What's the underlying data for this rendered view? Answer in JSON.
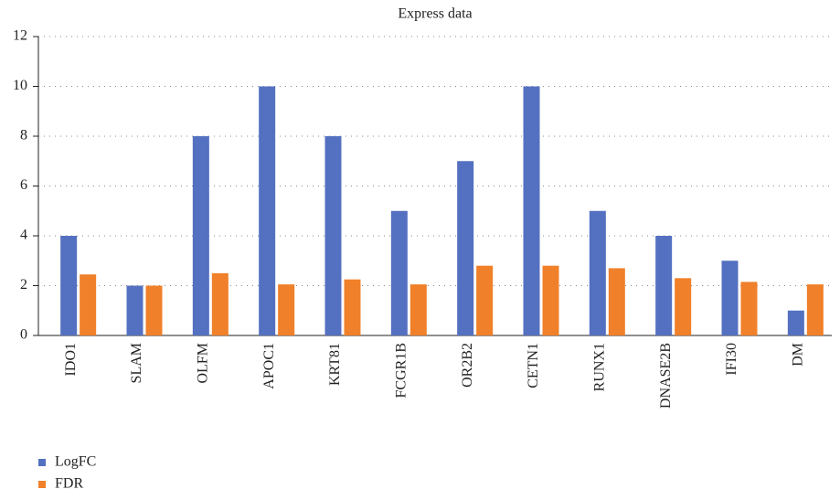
{
  "chart_data": {
    "type": "bar",
    "title": "Express data",
    "categories": [
      "IDO1",
      "SLAM",
      "OLFM",
      "APOC1",
      "KRT81",
      "FCGR1B",
      "OR2B2",
      "CETN1",
      "RUNX1",
      "DNASE2B",
      "IFI30",
      "DM"
    ],
    "series": [
      {
        "name": "LogFC",
        "color": "#5470c0",
        "values": [
          4,
          2,
          8,
          10,
          8,
          5,
          7,
          10,
          5,
          4,
          3,
          1
        ]
      },
      {
        "name": "FDR",
        "color": "#f0802a",
        "values": [
          2.45,
          2.0,
          2.5,
          2.05,
          2.25,
          2.05,
          2.8,
          2.8,
          2.7,
          2.3,
          2.15,
          2.05
        ]
      }
    ],
    "ylim": [
      0,
      12
    ],
    "yticks": [
      0,
      2,
      4,
      6,
      8,
      10,
      12
    ],
    "grid": true
  }
}
